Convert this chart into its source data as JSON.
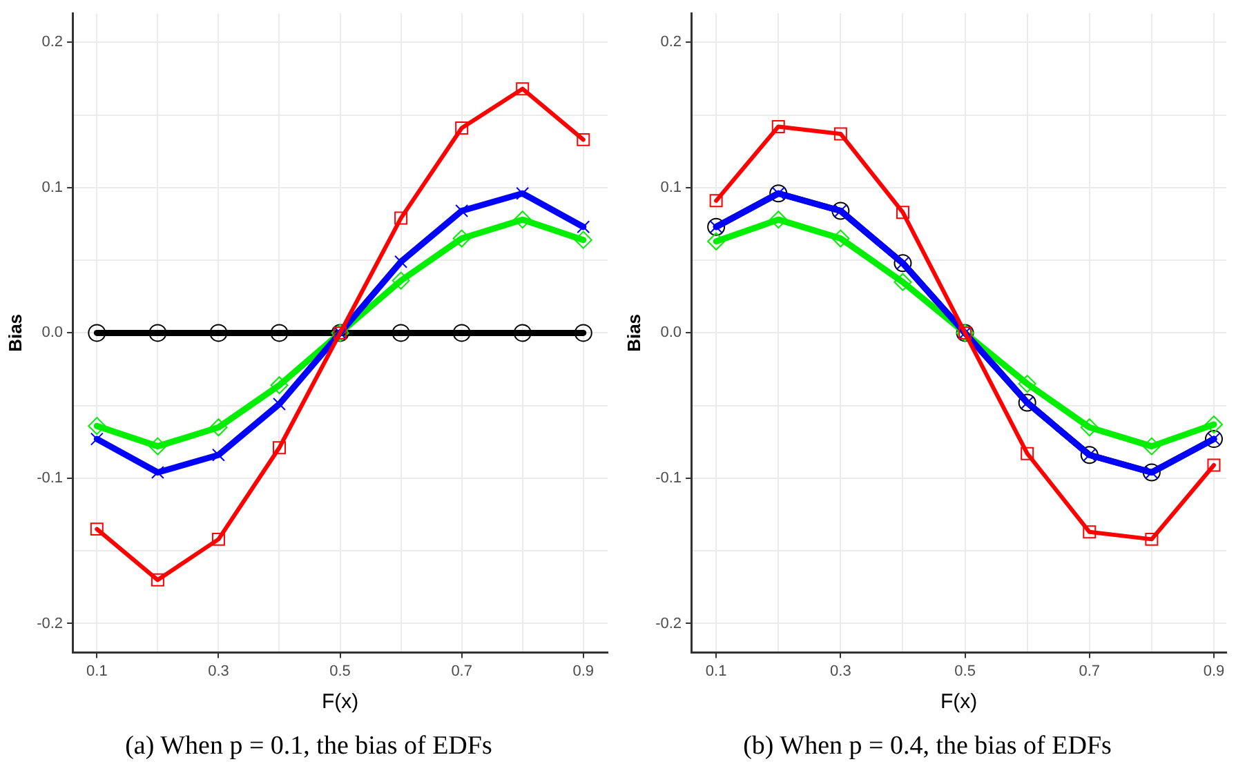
{
  "chart_data": [
    {
      "type": "line",
      "xlabel": "F(x)",
      "ylabel": "Bias",
      "annotations": [
        "(a) When p = 0.1, the bias of EDFs"
      ],
      "x": [
        0.1,
        0.2,
        0.3,
        0.4,
        0.5,
        0.6,
        0.7,
        0.8,
        0.9
      ],
      "xlim": [
        0.06,
        0.94
      ],
      "ylim": [
        -0.22,
        0.22
      ],
      "xticks": [
        0.1,
        {
          "value": 0.2,
          "label": null
        },
        0.3,
        {
          "value": 0.4,
          "label": null
        },
        0.5,
        {
          "value": 0.6,
          "label": null
        },
        0.7,
        {
          "value": 0.8,
          "label": null
        },
        0.9
      ],
      "yticks": [
        -0.2,
        {
          "value": -0.15,
          "label": null
        },
        -0.1,
        {
          "value": -0.05,
          "label": null
        },
        {
          "value": 0,
          "label": "0.0"
        },
        {
          "value": 0.05,
          "label": null
        },
        0.1,
        {
          "value": 0.15,
          "label": null
        },
        0.2
      ],
      "grid": true,
      "series": [
        {
          "color": "#000000",
          "marker": "circle",
          "values": [
            0,
            0,
            0,
            0,
            0,
            0,
            0,
            0,
            0
          ]
        },
        {
          "color": "#00ee00",
          "marker": "diamond",
          "values": [
            -0.064,
            -0.078,
            -0.065,
            -0.036,
            0,
            0.036,
            0.065,
            0.078,
            0.064
          ]
        },
        {
          "color": "#0000ff",
          "marker": "cross",
          "values": [
            -0.073,
            -0.096,
            -0.084,
            -0.049,
            0,
            0.049,
            0.084,
            0.096,
            0.073
          ]
        },
        {
          "color": "#ff0000",
          "marker": "square",
          "values": [
            -0.135,
            -0.17,
            -0.142,
            -0.079,
            0,
            0.079,
            0.141,
            0.168,
            0.133
          ]
        }
      ]
    },
    {
      "type": "line",
      "xlabel": "F(x)",
      "ylabel": "Bias",
      "annotations": [
        "(b) When p = 0.4, the bias of EDFs"
      ],
      "x": [
        0.1,
        0.2,
        0.3,
        0.4,
        0.5,
        0.6,
        0.7,
        0.8,
        0.9
      ],
      "xlim": [
        0.06,
        0.92
      ],
      "ylim": [
        -0.22,
        0.22
      ],
      "xticks": [
        0.1,
        {
          "value": 0.2,
          "label": null
        },
        0.3,
        {
          "value": 0.4,
          "label": null
        },
        0.5,
        {
          "value": 0.6,
          "label": null
        },
        0.7,
        {
          "value": 0.8,
          "label": null
        },
        0.9
      ],
      "yticks": [
        -0.2,
        {
          "value": -0.15,
          "label": null
        },
        -0.1,
        {
          "value": -0.05,
          "label": null
        },
        {
          "value": 0,
          "label": "0.0"
        },
        {
          "value": 0.05,
          "label": null
        },
        0.1,
        {
          "value": 0.15,
          "label": null
        },
        0.2
      ],
      "grid": true,
      "series": [
        {
          "color": "#000000",
          "marker": "circle",
          "values": [
            0.073,
            0.096,
            0.084,
            0.048,
            0,
            -0.048,
            -0.084,
            -0.096,
            -0.073
          ]
        },
        {
          "color": "#00ee00",
          "marker": "diamond",
          "values": [
            0.063,
            0.078,
            0.065,
            0.035,
            0,
            -0.035,
            -0.065,
            -0.078,
            -0.063
          ]
        },
        {
          "color": "#0000ff",
          "marker": "cross",
          "values": [
            0.073,
            0.096,
            0.084,
            0.048,
            0,
            -0.048,
            -0.084,
            -0.096,
            -0.073
          ]
        },
        {
          "color": "#ff0000",
          "marker": "square",
          "values": [
            0.091,
            0.142,
            0.137,
            0.083,
            0,
            -0.083,
            -0.137,
            -0.142,
            -0.091
          ]
        }
      ]
    }
  ]
}
